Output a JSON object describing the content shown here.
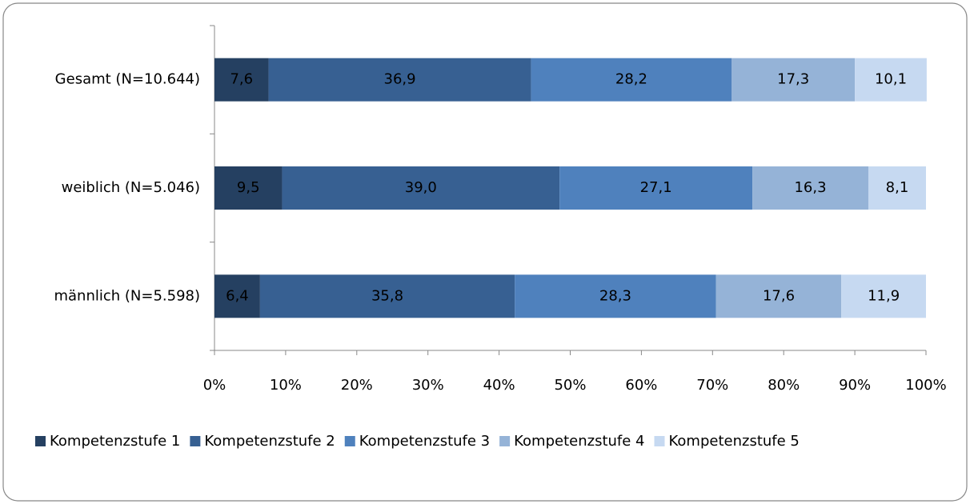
{
  "chart_data": {
    "type": "stacked-bar-horizontal",
    "categories": [
      "Gesamt (N=10.644)",
      "weiblich (N=5.046)",
      "männlich (N=5.598)"
    ],
    "series": [
      {
        "name": "Kompetenzstufe 1",
        "color": "#254061",
        "values": [
          7.6,
          9.5,
          6.4
        ],
        "value_labels": [
          "7,6",
          "9,5",
          "6,4"
        ]
      },
      {
        "name": "Kompetenzstufe 2",
        "color": "#376092",
        "values": [
          36.9,
          39.0,
          35.8
        ],
        "value_labels": [
          "36,9",
          "39,0",
          "35,8"
        ]
      },
      {
        "name": "Kompetenzstufe 3",
        "color": "#4f81bd",
        "values": [
          28.2,
          27.1,
          28.3
        ],
        "value_labels": [
          "28,2",
          "27,1",
          "28,3"
        ]
      },
      {
        "name": "Kompetenzstufe 4",
        "color": "#95b3d7",
        "values": [
          17.3,
          16.3,
          17.6
        ],
        "value_labels": [
          "17,3",
          "16,3",
          "17,6"
        ]
      },
      {
        "name": "Kompetenzstufe 5",
        "color": "#c6d9f1",
        "values": [
          10.1,
          8.1,
          11.9
        ],
        "value_labels": [
          "10,1",
          "8,1",
          "11,9"
        ]
      }
    ],
    "xlim": [
      0,
      100
    ],
    "xticks": [
      {
        "value": 0,
        "label": "0%"
      },
      {
        "value": 10,
        "label": "10%"
      },
      {
        "value": 20,
        "label": "20%"
      },
      {
        "value": 30,
        "label": "30%"
      },
      {
        "value": 40,
        "label": "40%"
      },
      {
        "value": 50,
        "label": "50%"
      },
      {
        "value": 60,
        "label": "60%"
      },
      {
        "value": 70,
        "label": "70%"
      },
      {
        "value": 80,
        "label": "80%"
      },
      {
        "value": 90,
        "label": "90%"
      },
      {
        "value": 100,
        "label": "100%"
      }
    ],
    "legend": "bottom"
  }
}
